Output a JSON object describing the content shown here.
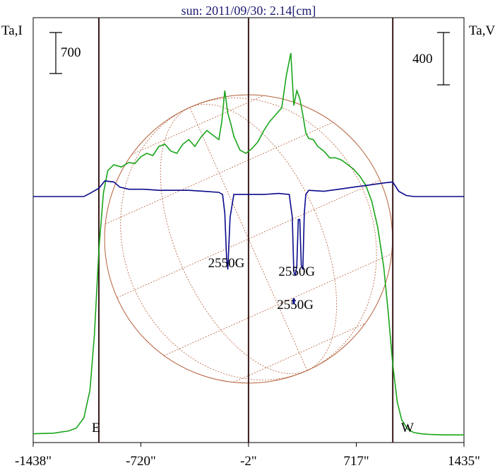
{
  "chart_data": {
    "type": "line",
    "title": "sun: 2011/09/30: 2.14[cm]",
    "left_axis_label": "Ta,I",
    "right_axis_label": "Ta,V",
    "x_ticks": [
      "-1438\"",
      "-720\"",
      "-2\"",
      "717\"",
      "1435\""
    ],
    "x_tick_values": [
      -1438,
      -720,
      -2,
      717,
      1435
    ],
    "xlim": [
      -1438,
      1435
    ],
    "vertical_markers": [
      -1000,
      -2,
      960
    ],
    "limb_labels": {
      "east": "E",
      "west": "W"
    },
    "scale_bars": {
      "intensity": "700",
      "polarization": "400"
    },
    "annotations": [
      "2550G",
      "2550G",
      "2550G"
    ],
    "annotation_positions": [
      {
        "label": "2550G",
        "x": -150,
        "y_v": -340
      },
      {
        "label": "2550G",
        "x": 320,
        "y_v": -380
      },
      {
        "label": "2550G",
        "x": 310,
        "y_v": -540
      }
    ],
    "colors": {
      "intensity": "#1aa51a",
      "polarization": "#0a0a8c",
      "disk": "#b5603a",
      "markers": "#3a1a1a",
      "title": "#1a1a6e"
    },
    "series": [
      {
        "name": "I",
        "x": [
          -1438,
          -1300,
          -1200,
          -1150,
          -1100,
          -1060,
          -1030,
          -1000,
          -970,
          -940,
          -900,
          -850,
          -800,
          -760,
          -720,
          -680,
          -640,
          -600,
          -560,
          -520,
          -480,
          -440,
          -400,
          -360,
          -320,
          -280,
          -240,
          -200,
          -180,
          -160,
          -140,
          -120,
          -100,
          -60,
          -20,
          20,
          60,
          100,
          140,
          180,
          220,
          250,
          280,
          300,
          320,
          340,
          360,
          380,
          400,
          430,
          460,
          500,
          540,
          580,
          620,
          660,
          700,
          740,
          780,
          820,
          860,
          900,
          930,
          960,
          990,
          1020,
          1060,
          1100,
          1150,
          1200,
          1300,
          1435
        ],
        "y": [
          40,
          45,
          65,
          90,
          180,
          420,
          900,
          1650,
          2150,
          2350,
          2400,
          2380,
          2420,
          2410,
          2470,
          2500,
          2480,
          2560,
          2580,
          2520,
          2500,
          2580,
          2620,
          2560,
          2640,
          2700,
          2660,
          2620,
          2780,
          3050,
          2850,
          2760,
          2650,
          2530,
          2500,
          2540,
          2600,
          2700,
          2780,
          2840,
          2900,
          3180,
          3380,
          2920,
          3050,
          2980,
          2840,
          2680,
          2630,
          2620,
          2560,
          2520,
          2460,
          2460,
          2440,
          2400,
          2360,
          2300,
          2220,
          2080,
          1850,
          1500,
          1100,
          650,
          320,
          160,
          80,
          50,
          40,
          35,
          30,
          30
        ]
      },
      {
        "name": "V",
        "x": [
          -1438,
          -1100,
          -1060,
          -1000,
          -960,
          -900,
          -860,
          -800,
          -700,
          -600,
          -400,
          -300,
          -200,
          -175,
          -160,
          -148,
          -140,
          -125,
          -100,
          0,
          100,
          200,
          270,
          290,
          300,
          310,
          320,
          330,
          340,
          350,
          360,
          370,
          380,
          400,
          500,
          600,
          700,
          800,
          900,
          960,
          1000,
          1050,
          1100,
          1435
        ],
        "y": [
          0,
          0,
          15,
          40,
          75,
          70,
          45,
          35,
          35,
          30,
          30,
          25,
          20,
          10,
          -80,
          -300,
          -350,
          -100,
          10,
          10,
          10,
          15,
          10,
          -100,
          -360,
          -380,
          -330,
          -110,
          -110,
          -330,
          -350,
          -80,
          10,
          30,
          25,
          35,
          45,
          55,
          65,
          70,
          25,
          5,
          0,
          0
        ]
      }
    ],
    "solar_disk": {
      "center_x": -2,
      "radius": 960
    }
  }
}
